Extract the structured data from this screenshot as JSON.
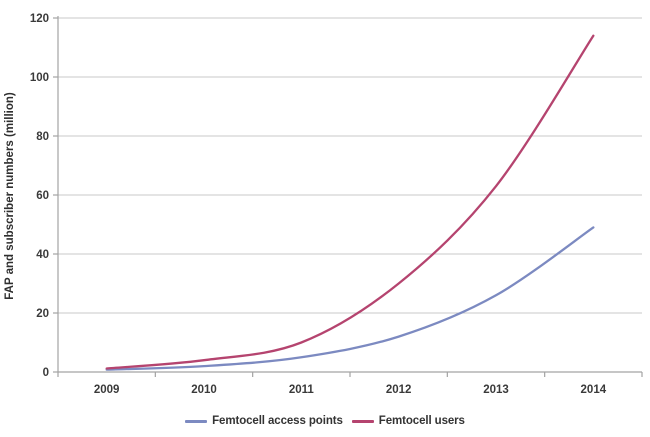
{
  "chart_data": {
    "type": "line",
    "title": "",
    "categories": [
      "2009",
      "2010",
      "2011",
      "2012",
      "2013",
      "2014"
    ],
    "series": [
      {
        "name": "Femtocell access points",
        "color": "#7C8AC1",
        "values": [
          0.8,
          2,
          5,
          12,
          26,
          49
        ]
      },
      {
        "name": "Femtocell users",
        "color": "#B5446F",
        "values": [
          1.2,
          4,
          10,
          30,
          63,
          114
        ]
      }
    ],
    "xlabel": "",
    "ylabel": "FAP and subscriber numbers (million)",
    "ylim": [
      0,
      120
    ],
    "ytick_step": 20,
    "yticks": [
      0,
      20,
      40,
      60,
      80,
      100,
      120
    ],
    "grid": true,
    "line_style": "smooth",
    "legend_position": "bottom"
  },
  "colors": {
    "background": "#ffffff",
    "text": "#3a3a3a",
    "gridline": "#c8c8c8",
    "axis": "#a3a3a3",
    "series_access_points": "#7C8AC1",
    "series_users": "#B5446F"
  }
}
